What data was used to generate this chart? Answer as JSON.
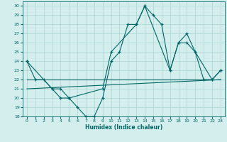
{
  "xlabel": "Humidex (Indice chaleur)",
  "bg_color": "#d4eeee",
  "grid_color": "#a8d4d4",
  "line_color": "#006666",
  "xlim": [
    -0.5,
    23.5
  ],
  "ylim": [
    18,
    30.5
  ],
  "yticks": [
    18,
    19,
    20,
    21,
    22,
    23,
    24,
    25,
    26,
    27,
    28,
    29,
    30
  ],
  "xticks": [
    0,
    1,
    2,
    3,
    4,
    5,
    6,
    7,
    8,
    9,
    10,
    11,
    12,
    13,
    14,
    15,
    16,
    17,
    18,
    19,
    20,
    21,
    22,
    23
  ],
  "xtick_labels": [
    "0",
    "1",
    "2",
    "3",
    "4",
    "5",
    "6",
    "7",
    "8",
    "9",
    "10",
    "11",
    "12",
    "13",
    "14",
    "15",
    "16",
    "17",
    "18",
    "19",
    "20",
    "21",
    "22",
    "23"
  ],
  "series1_x": [
    0,
    1,
    2,
    3,
    4,
    5,
    6,
    7,
    8,
    9,
    10,
    11,
    12,
    13,
    14,
    15,
    16,
    17,
    18,
    19,
    20,
    21,
    22,
    23
  ],
  "series1_y": [
    24,
    22,
    22,
    21,
    20,
    20,
    19,
    18,
    18,
    20,
    24,
    25,
    28,
    28,
    30,
    29,
    28,
    23,
    26,
    27,
    25,
    22,
    22,
    23
  ],
  "series2_x": [
    0,
    3,
    4,
    5,
    9,
    10,
    13,
    14,
    17,
    18,
    19,
    20,
    22,
    23
  ],
  "series2_y": [
    24,
    21,
    21,
    20,
    21,
    25,
    28,
    30,
    23,
    26,
    26,
    25,
    22,
    23
  ],
  "series3_x": [
    0,
    23
  ],
  "series3_y": [
    22,
    22
  ],
  "series4_x": [
    0,
    23
  ],
  "series4_y": [
    21,
    22
  ]
}
